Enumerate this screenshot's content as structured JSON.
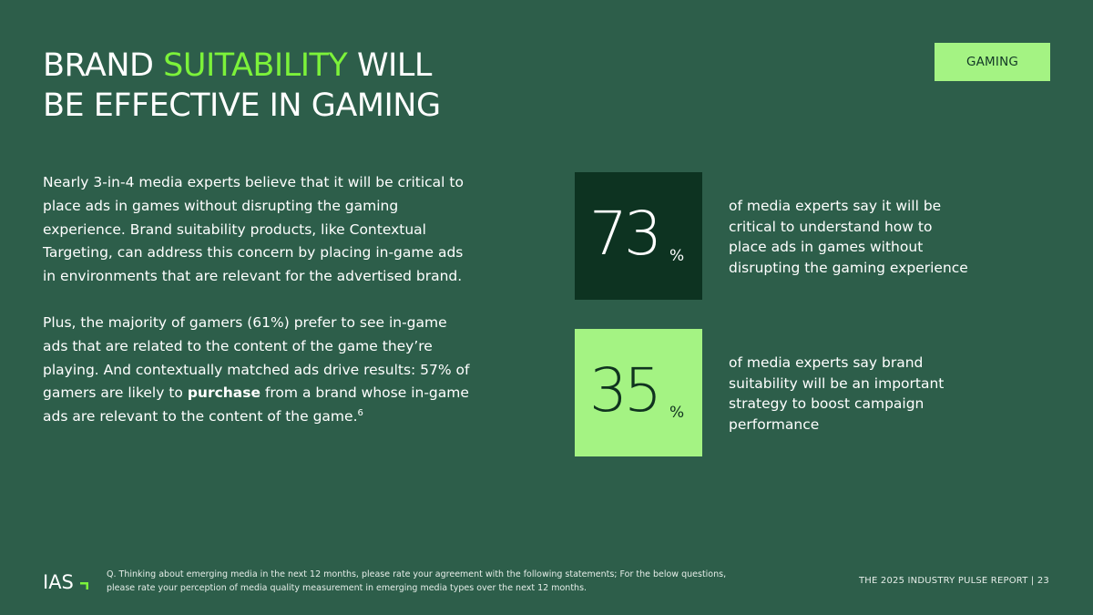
{
  "title": {
    "part1": "BRAND ",
    "accent": "SUITABILITY",
    "part2": " WILL",
    "line2": "BE EFFECTIVE IN GAMING"
  },
  "tag": "GAMING",
  "body": {
    "paragraph1": "Nearly 3-in-4 media experts believe that it will be critical to place ads in games without disrupting the gaming experience. Brand suitability products, like Contextual Targeting, can address this concern by placing in-game ads in environments that are relevant for the advertised brand.",
    "paragraph2_start": "Plus, the majority of gamers (61%) prefer to see in-game ads that are related to the content of the game they’re playing. And contextually matched ads drive results: 57% of gamers are likely to ",
    "paragraph2_bold": "purchase",
    "paragraph2_end": " from a brand whose in-game ads are relevant to the content of the game.",
    "paragraph2_footnote": "6"
  },
  "stats": [
    {
      "value": "73",
      "unit": "%",
      "text": "of media experts say it will be critical to understand how to place ads in games without disrupting the gaming experience"
    },
    {
      "value": "35",
      "unit": "%",
      "text": "of media experts say brand suitability will be an important strategy to boost campaign performance"
    }
  ],
  "footer": {
    "logo_text": "IAS",
    "note": "Q. Thinking about emerging media in the next 12 months, please rate your agreement with the following statements; For the below questions, please rate your perception of media quality measurement in emerging media types over the next 12 months.",
    "report": "THE 2025 INDUSTRY PULSE REPORT",
    "separator": "|",
    "page": "23"
  },
  "colors": {
    "background": "#2d5e4a",
    "accent": "#7cf23a",
    "light_green": "#a4f383",
    "dark_green": "#0d3321"
  }
}
